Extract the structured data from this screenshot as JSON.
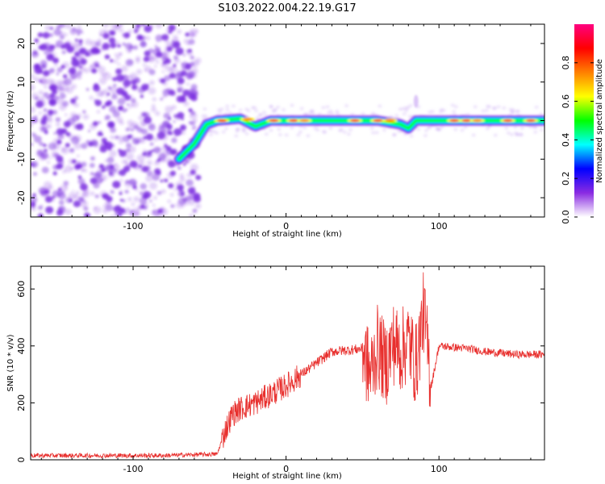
{
  "title": "S103.2022.004.22.19.G17",
  "colors": {
    "snr_line": "#e8302e",
    "noise_points": "#7b2fe0",
    "axis": "#000000"
  },
  "chart_data": [
    {
      "type": "heatmap",
      "xlabel": "Height of straight line (km)",
      "ylabel": "Frequency (Hz)",
      "xlim": [
        -167,
        169
      ],
      "ylim": [
        -25,
        25
      ],
      "x_ticks": [
        -100,
        0,
        100
      ],
      "y_ticks": [
        -20,
        -10,
        0,
        10,
        20
      ],
      "colorbar": {
        "label": "Normalized spectral amplitude",
        "range": [
          0,
          1
        ],
        "ticks": [
          0.0,
          0.2,
          0.4,
          0.6,
          0.8
        ],
        "tick_labels": [
          "0.0",
          "0.2",
          "0.4",
          "0.6",
          "0.8"
        ],
        "colormap": [
          "#ffffff",
          "#8a2be2",
          "#0000ff",
          "#00ffff",
          "#00ff00",
          "#ffff00",
          "#ff8000",
          "#ff0000",
          "#ff0080"
        ]
      },
      "noise_region_x": [
        -167,
        -57
      ],
      "signal_ridge": [
        {
          "x": -70,
          "f": -10
        },
        {
          "x": -60,
          "f": -6
        },
        {
          "x": -52,
          "f": -1
        },
        {
          "x": -45,
          "f": 0
        },
        {
          "x": -30,
          "f": 0.5
        },
        {
          "x": -20,
          "f": -1.5
        },
        {
          "x": -10,
          "f": 0
        },
        {
          "x": 0,
          "f": 0
        },
        {
          "x": 20,
          "f": 0
        },
        {
          "x": 40,
          "f": 0
        },
        {
          "x": 60,
          "f": 0
        },
        {
          "x": 75,
          "f": -1
        },
        {
          "x": 80,
          "f": -2
        },
        {
          "x": 85,
          "f": 0
        },
        {
          "x": 100,
          "f": 0
        },
        {
          "x": 120,
          "f": 0
        },
        {
          "x": 140,
          "f": 0
        },
        {
          "x": 169,
          "f": 0
        }
      ]
    },
    {
      "type": "line",
      "xlabel": "Height of straight line (km)",
      "ylabel": "SNR (10 * v/v)",
      "xlim": [
        -167,
        169
      ],
      "ylim": [
        0,
        680
      ],
      "x_ticks": [
        -100,
        0,
        100
      ],
      "y_ticks": [
        0,
        200,
        400,
        600
      ],
      "series": [
        {
          "x": [
            -167,
            -120,
            -80,
            -45,
            -40,
            -35,
            -30,
            -20,
            -10,
            0,
            10,
            20,
            30,
            40,
            50,
            55,
            60,
            65,
            70,
            75,
            80,
            85,
            90,
            95,
            100,
            110,
            120,
            130,
            140,
            150,
            160,
            169
          ],
          "y": [
            15,
            15,
            15,
            20,
            100,
            160,
            180,
            200,
            230,
            260,
            300,
            340,
            380,
            385,
            390,
            300,
            400,
            330,
            410,
            380,
            420,
            330,
            520,
            260,
            400,
            395,
            390,
            380,
            375,
            370,
            370,
            370
          ]
        }
      ]
    }
  ]
}
